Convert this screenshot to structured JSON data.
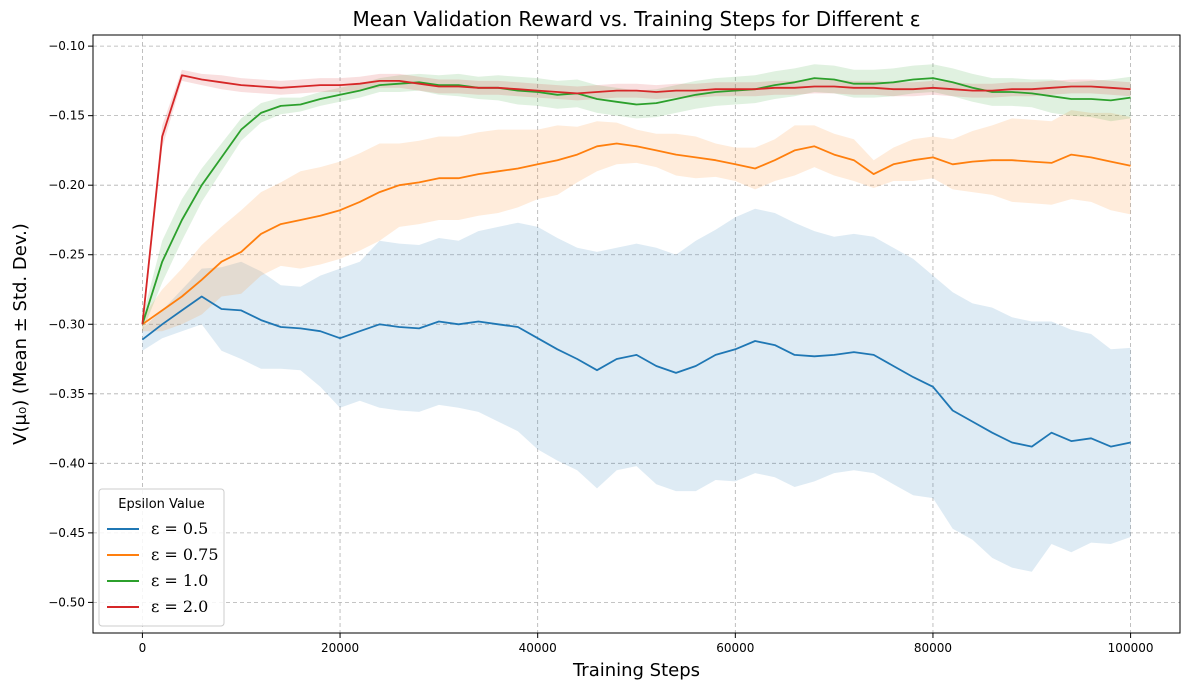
{
  "chart_data": {
    "type": "line",
    "title": "Mean Validation Reward vs. Training Steps for Different ε",
    "xlabel": "Training Steps",
    "ylabel": "V(μ₀) (Mean ± Std. Dev.)",
    "xlim": [
      -5000,
      105000
    ],
    "ylim": [
      -0.522,
      -0.092
    ],
    "x_ticks": [
      0,
      20000,
      40000,
      60000,
      80000,
      100000
    ],
    "x_tick_labels": [
      "0",
      "20000",
      "40000",
      "60000",
      "80000",
      "100000"
    ],
    "y_ticks": [
      -0.1,
      -0.15,
      -0.2,
      -0.25,
      -0.3,
      -0.35,
      -0.4,
      -0.45,
      -0.5
    ],
    "y_tick_labels": [
      "−0.10",
      "−0.15",
      "−0.20",
      "−0.25",
      "−0.30",
      "−0.35",
      "−0.40",
      "−0.45",
      "−0.50"
    ],
    "grid": true,
    "legend": {
      "title": "Epsilon Value",
      "placement": "lower-left"
    },
    "x": [
      0,
      2000,
      4000,
      6000,
      8000,
      10000,
      12000,
      14000,
      16000,
      18000,
      20000,
      22000,
      24000,
      26000,
      28000,
      30000,
      32000,
      34000,
      36000,
      38000,
      40000,
      42000,
      44000,
      46000,
      48000,
      50000,
      52000,
      54000,
      56000,
      58000,
      60000,
      62000,
      64000,
      66000,
      68000,
      70000,
      72000,
      74000,
      76000,
      78000,
      80000,
      82000,
      84000,
      86000,
      88000,
      90000,
      92000,
      94000,
      96000,
      98000,
      100000
    ],
    "series": [
      {
        "name": "ε = 0.5",
        "color": "#1f77b4",
        "mean": [
          -0.311,
          -0.3,
          -0.29,
          -0.28,
          -0.289,
          -0.29,
          -0.297,
          -0.302,
          -0.303,
          -0.305,
          -0.31,
          -0.305,
          -0.3,
          -0.302,
          -0.303,
          -0.298,
          -0.3,
          -0.298,
          -0.3,
          -0.302,
          -0.31,
          -0.318,
          -0.325,
          -0.333,
          -0.325,
          -0.322,
          -0.33,
          -0.335,
          -0.33,
          -0.322,
          -0.318,
          -0.312,
          -0.315,
          -0.322,
          -0.323,
          -0.322,
          -0.32,
          -0.322,
          -0.33,
          -0.338,
          -0.345,
          -0.362,
          -0.37,
          -0.378,
          -0.385,
          -0.388,
          -0.378,
          -0.384,
          -0.382,
          -0.388,
          -0.385
        ],
        "std": [
          0.008,
          0.01,
          0.015,
          0.02,
          0.03,
          0.035,
          0.035,
          0.03,
          0.03,
          0.04,
          0.05,
          0.05,
          0.06,
          0.06,
          0.06,
          0.06,
          0.06,
          0.065,
          0.07,
          0.075,
          0.08,
          0.08,
          0.08,
          0.085,
          0.08,
          0.08,
          0.085,
          0.085,
          0.09,
          0.09,
          0.095,
          0.095,
          0.095,
          0.095,
          0.09,
          0.085,
          0.085,
          0.085,
          0.085,
          0.085,
          0.08,
          0.085,
          0.085,
          0.09,
          0.09,
          0.09,
          0.08,
          0.08,
          0.075,
          0.07,
          0.068
        ]
      },
      {
        "name": "ε = 0.75",
        "color": "#ff7f0e",
        "mean": [
          -0.3,
          -0.29,
          -0.28,
          -0.268,
          -0.255,
          -0.248,
          -0.235,
          -0.228,
          -0.225,
          -0.222,
          -0.218,
          -0.212,
          -0.205,
          -0.2,
          -0.198,
          -0.195,
          -0.195,
          -0.192,
          -0.19,
          -0.188,
          -0.185,
          -0.182,
          -0.178,
          -0.172,
          -0.17,
          -0.172,
          -0.175,
          -0.178,
          -0.18,
          -0.182,
          -0.185,
          -0.188,
          -0.182,
          -0.175,
          -0.172,
          -0.178,
          -0.182,
          -0.192,
          -0.185,
          -0.182,
          -0.18,
          -0.185,
          -0.183,
          -0.182,
          -0.182,
          -0.183,
          -0.184,
          -0.178,
          -0.18,
          -0.183,
          -0.186
        ],
        "std": [
          0.005,
          0.015,
          0.02,
          0.025,
          0.025,
          0.03,
          0.03,
          0.03,
          0.035,
          0.035,
          0.035,
          0.035,
          0.035,
          0.03,
          0.03,
          0.03,
          0.03,
          0.03,
          0.03,
          0.028,
          0.025,
          0.025,
          0.02,
          0.018,
          0.015,
          0.012,
          0.012,
          0.015,
          0.015,
          0.012,
          0.012,
          0.015,
          0.015,
          0.018,
          0.015,
          0.015,
          0.015,
          0.01,
          0.012,
          0.015,
          0.015,
          0.018,
          0.022,
          0.025,
          0.03,
          0.03,
          0.03,
          0.032,
          0.032,
          0.035,
          0.035
        ]
      },
      {
        "name": "ε = 1.0",
        "color": "#2ca02c",
        "mean": [
          -0.3,
          -0.255,
          -0.225,
          -0.2,
          -0.18,
          -0.16,
          -0.148,
          -0.143,
          -0.142,
          -0.138,
          -0.135,
          -0.132,
          -0.128,
          -0.127,
          -0.126,
          -0.128,
          -0.128,
          -0.13,
          -0.13,
          -0.132,
          -0.133,
          -0.135,
          -0.134,
          -0.138,
          -0.14,
          -0.142,
          -0.141,
          -0.138,
          -0.135,
          -0.133,
          -0.132,
          -0.131,
          -0.128,
          -0.126,
          -0.123,
          -0.124,
          -0.127,
          -0.127,
          -0.126,
          -0.124,
          -0.123,
          -0.126,
          -0.13,
          -0.133,
          -0.133,
          -0.134,
          -0.136,
          -0.138,
          -0.138,
          -0.139,
          -0.137
        ],
        "std": [
          0.005,
          0.015,
          0.015,
          0.012,
          0.01,
          0.008,
          0.007,
          0.006,
          0.005,
          0.005,
          0.005,
          0.005,
          0.005,
          0.006,
          0.006,
          0.007,
          0.008,
          0.008,
          0.009,
          0.01,
          0.01,
          0.01,
          0.01,
          0.01,
          0.01,
          0.01,
          0.01,
          0.01,
          0.01,
          0.01,
          0.01,
          0.01,
          0.01,
          0.01,
          0.01,
          0.01,
          0.01,
          0.01,
          0.01,
          0.01,
          0.01,
          0.01,
          0.01,
          0.01,
          0.01,
          0.01,
          0.012,
          0.012,
          0.013,
          0.015,
          0.015
        ]
      },
      {
        "name": "ε = 2.0",
        "color": "#d62728",
        "mean": [
          -0.3,
          -0.165,
          -0.121,
          -0.124,
          -0.126,
          -0.128,
          -0.129,
          -0.13,
          -0.129,
          -0.128,
          -0.128,
          -0.127,
          -0.125,
          -0.125,
          -0.127,
          -0.129,
          -0.129,
          -0.13,
          -0.13,
          -0.131,
          -0.132,
          -0.133,
          -0.134,
          -0.133,
          -0.132,
          -0.132,
          -0.133,
          -0.132,
          -0.132,
          -0.131,
          -0.131,
          -0.131,
          -0.13,
          -0.13,
          -0.129,
          -0.129,
          -0.13,
          -0.13,
          -0.131,
          -0.131,
          -0.13,
          -0.131,
          -0.132,
          -0.132,
          -0.131,
          -0.131,
          -0.13,
          -0.129,
          -0.129,
          -0.13,
          -0.131
        ],
        "std": [
          0.005,
          0.008,
          0.004,
          0.004,
          0.005,
          0.005,
          0.005,
          0.005,
          0.005,
          0.005,
          0.005,
          0.005,
          0.005,
          0.005,
          0.005,
          0.005,
          0.005,
          0.005,
          0.005,
          0.005,
          0.005,
          0.005,
          0.005,
          0.005,
          0.005,
          0.005,
          0.005,
          0.005,
          0.005,
          0.005,
          0.005,
          0.005,
          0.005,
          0.005,
          0.005,
          0.005,
          0.005,
          0.005,
          0.005,
          0.005,
          0.005,
          0.005,
          0.005,
          0.005,
          0.005,
          0.005,
          0.005,
          0.005,
          0.005,
          0.005,
          0.005
        ]
      }
    ]
  }
}
